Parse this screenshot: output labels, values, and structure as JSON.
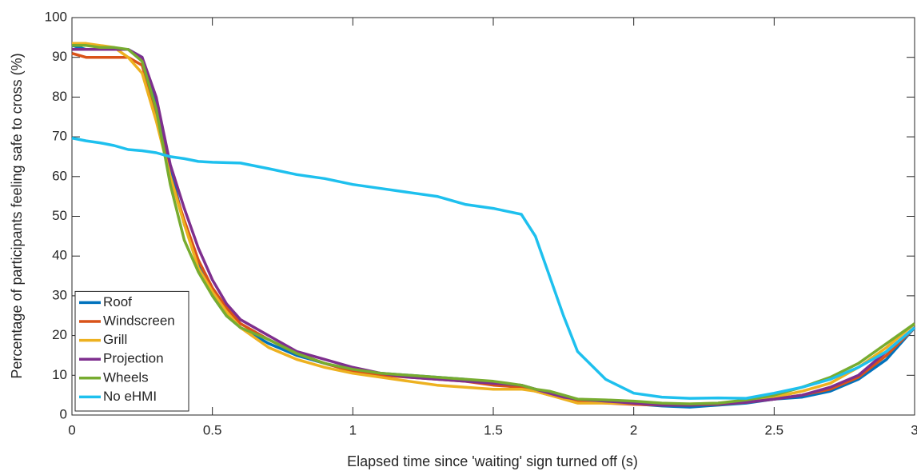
{
  "chart_data": {
    "type": "line",
    "x_label": "Elapsed time since 'waiting' sign turned off (s)",
    "y_label": "Percentage of participants feeling safe to cross (%)",
    "x": [
      0,
      0.05,
      0.1,
      0.15,
      0.2,
      0.25,
      0.3,
      0.35,
      0.4,
      0.45,
      0.5,
      0.55,
      0.6,
      0.7,
      0.8,
      0.9,
      1.0,
      1.1,
      1.2,
      1.3,
      1.4,
      1.5,
      1.6,
      1.65,
      1.7,
      1.75,
      1.8,
      1.9,
      2.0,
      2.1,
      2.2,
      2.3,
      2.4,
      2.5,
      2.6,
      2.7,
      2.8,
      2.9,
      3.0
    ],
    "series": [
      {
        "name": "Roof",
        "color": "#0072bd",
        "values": [
          93,
          92,
          92,
          92,
          92,
          90,
          78,
          62,
          48,
          38,
          30,
          25,
          22,
          18,
          15,
          13,
          11,
          10.5,
          10,
          9.5,
          9,
          8,
          7.5,
          6.5,
          5.5,
          4.5,
          3.5,
          3.2,
          2.8,
          2.3,
          2,
          2.5,
          3,
          4,
          4.5,
          6,
          9,
          14,
          22
        ]
      },
      {
        "name": "Windscreen",
        "color": "#d95319",
        "values": [
          91,
          90,
          90,
          90,
          90,
          88,
          76,
          60,
          49,
          39,
          32,
          27,
          23,
          19,
          15.5,
          13,
          11,
          10,
          9.5,
          9,
          8.5,
          7.5,
          7,
          6,
          5,
          4.5,
          3.5,
          3,
          2.7,
          2.5,
          2.5,
          2.7,
          3.2,
          4,
          5,
          6.5,
          9.5,
          15,
          22
        ]
      },
      {
        "name": "Grill",
        "color": "#edb120",
        "values": [
          93.5,
          93.5,
          93,
          92.5,
          90,
          86,
          74,
          60,
          48,
          37,
          31,
          26,
          22,
          17,
          14,
          12,
          10.5,
          9.5,
          8.5,
          7.5,
          7,
          6.5,
          6.5,
          6,
          5,
          4,
          3,
          3,
          3,
          2.8,
          2.8,
          3,
          3.5,
          4.5,
          6,
          8,
          12,
          17,
          23
        ]
      },
      {
        "name": "Projection",
        "color": "#7e2f8e",
        "values": [
          92,
          92,
          92,
          92,
          92,
          90,
          80,
          63,
          52,
          42,
          34,
          28,
          24,
          20,
          16,
          14,
          12,
          10.5,
          9.5,
          9,
          8.5,
          8,
          7.5,
          6.5,
          5.5,
          4.5,
          4,
          3.5,
          3,
          2.5,
          2.5,
          2.8,
          3.2,
          4,
          5,
          7,
          10,
          16,
          22
        ]
      },
      {
        "name": "Wheels",
        "color": "#77ac30",
        "values": [
          93,
          93,
          92.5,
          92.5,
          92,
          89,
          77,
          58,
          44,
          36,
          30,
          25,
          22,
          19,
          15.5,
          13,
          11.5,
          10.5,
          10,
          9.5,
          9,
          8.5,
          7.5,
          6.5,
          6,
          5,
          4,
          3.8,
          3.5,
          3,
          2.8,
          3,
          3.8,
          5,
          7,
          9.5,
          13,
          18,
          23
        ]
      },
      {
        "name": "No eHMI",
        "color": "#1ec0ee",
        "values": [
          69.7,
          69,
          68.5,
          67.8,
          66.8,
          66.5,
          66,
          65,
          64.5,
          63.8,
          63.6,
          63.5,
          63.4,
          62,
          60.5,
          59.5,
          58,
          57,
          56,
          55,
          53,
          52,
          50.5,
          45,
          35,
          25,
          16,
          9,
          5.5,
          4.5,
          4.2,
          4.3,
          4.2,
          5.5,
          7,
          9,
          12,
          16,
          22
        ]
      }
    ],
    "xlim": [
      0,
      3
    ],
    "xticks": [
      0,
      0.5,
      1,
      1.5,
      2,
      2.5,
      3
    ],
    "ylim": [
      0,
      100
    ],
    "yticks": [
      0,
      10,
      20,
      30,
      40,
      50,
      60,
      70,
      80,
      90,
      100
    ],
    "legend": "lower left"
  }
}
